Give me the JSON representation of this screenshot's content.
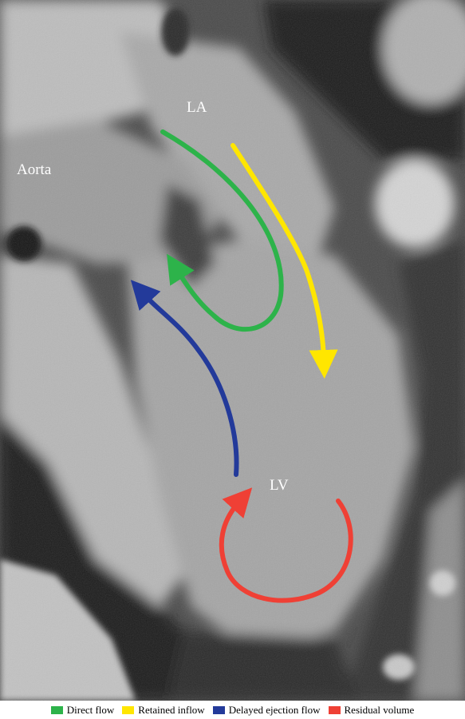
{
  "labels": {
    "la": "LA",
    "aorta": "Aorta",
    "lv": "LV"
  },
  "flows": [
    {
      "key": "direct",
      "name": "Direct flow",
      "color": "#2db34a"
    },
    {
      "key": "retained",
      "name": "Retained inflow",
      "color": "#ffe600"
    },
    {
      "key": "delayed",
      "name": "Delayed ejection flow",
      "color": "#233a9a"
    },
    {
      "key": "residual",
      "name": "Residual volume",
      "color": "#ef4035"
    }
  ]
}
